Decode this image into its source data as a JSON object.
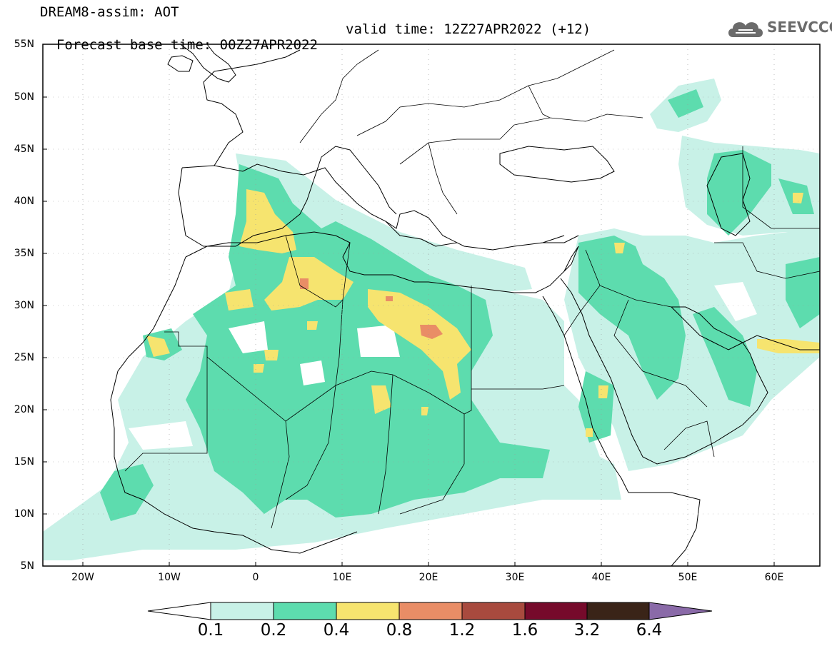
{
  "header": {
    "title": "DREAM8-assim: AOT",
    "base_time": "Forecast base time: 00Z27APR2022",
    "valid_time": "valid time: 12Z27APR2022 (+12)",
    "logo_text": "SEEVCCC"
  },
  "axes": {
    "lat_labels": [
      "55N",
      "50N",
      "45N",
      "40N",
      "35N",
      "30N",
      "25N",
      "20N",
      "15N",
      "10N",
      "5N"
    ],
    "lon_labels": [
      "20W",
      "10W",
      "0",
      "10E",
      "20E",
      "30E",
      "40E",
      "50E",
      "60E"
    ],
    "lat_range": [
      5,
      55
    ],
    "lon_range": [
      -25,
      65
    ]
  },
  "colorbar": {
    "levels": [
      "0.1",
      "0.2",
      "0.4",
      "0.8",
      "1.2",
      "1.6",
      "3.2",
      "6.4"
    ],
    "colors": [
      "#ffffff",
      "#c8f1e7",
      "#5ddcae",
      "#f6e46f",
      "#e98d66",
      "#a84a3e",
      "#760a2b",
      "#3a2418",
      "#8a6aa8"
    ]
  }
}
